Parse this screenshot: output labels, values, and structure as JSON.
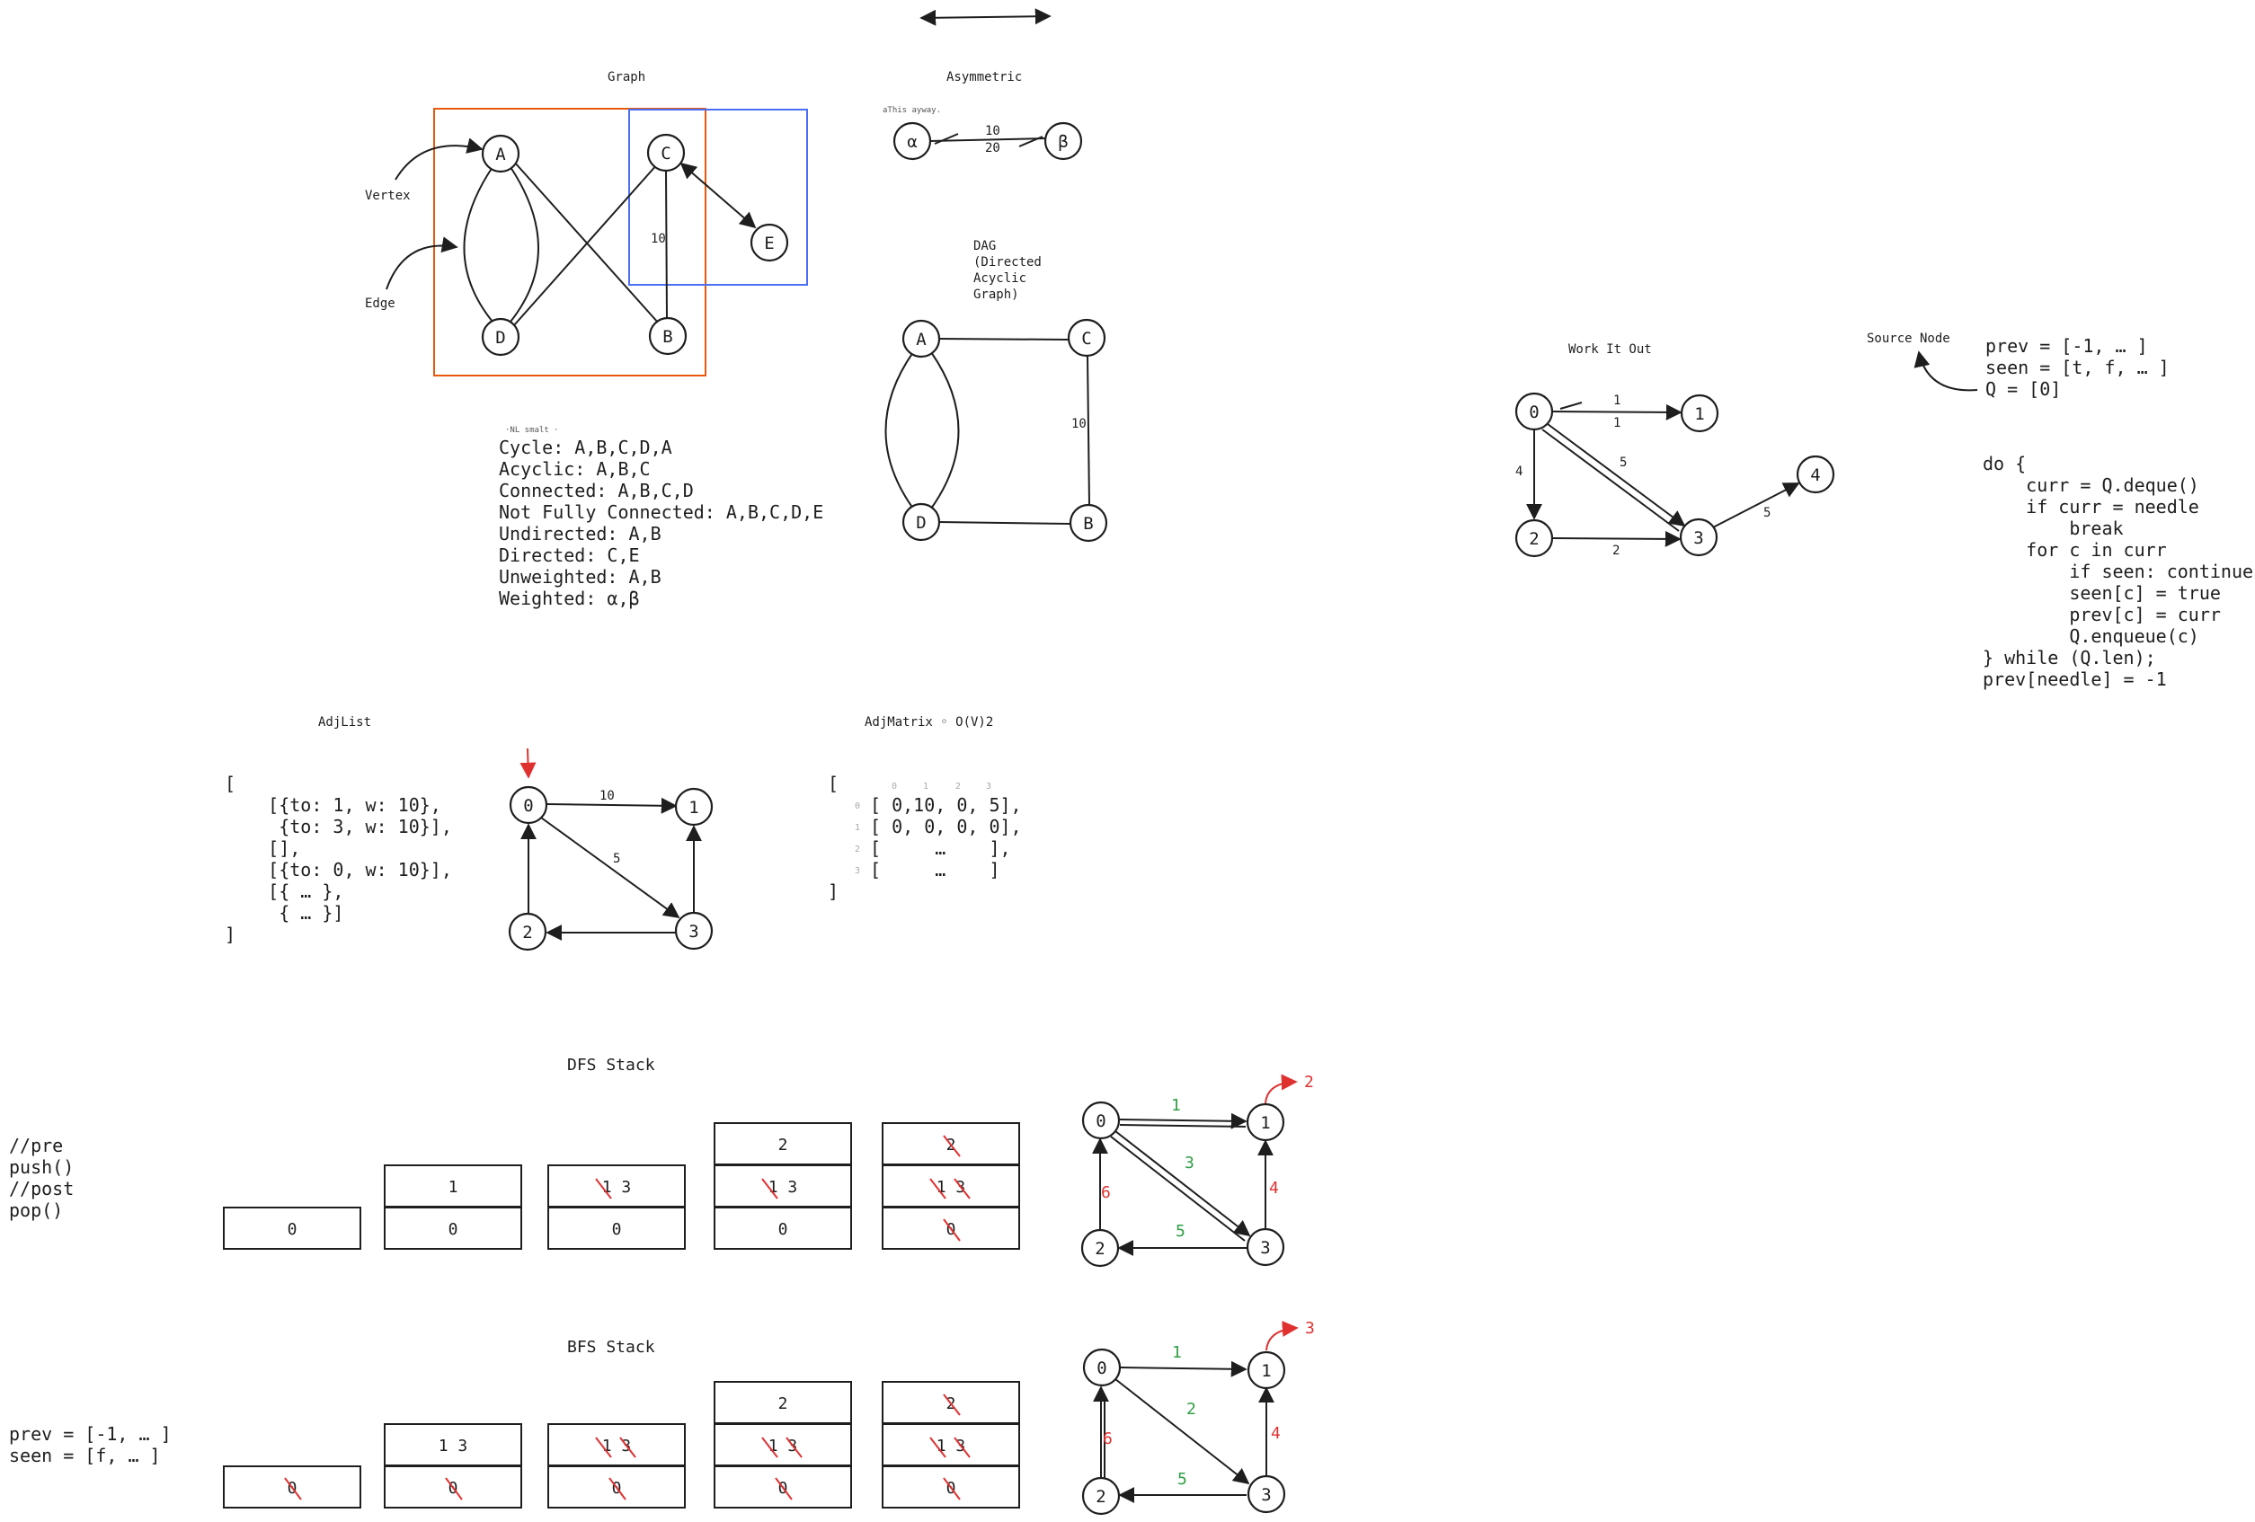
{
  "top": {
    "arrow": "double-headed-arrow"
  },
  "graph": {
    "title": "Graph",
    "vertex_label": "Vertex",
    "edge_label": "Edge",
    "nodes": [
      "A",
      "C",
      "E",
      "D",
      "B"
    ],
    "edge_weight": "10",
    "colors": {
      "orange_box": "#e8590c",
      "blue_box": "#4c6ef5"
    }
  },
  "asymmetric": {
    "title": "Asymmetric",
    "tiny_note": "aThis ayway.",
    "nodes": [
      "α",
      "β"
    ],
    "weights": [
      "10",
      "20"
    ]
  },
  "dag": {
    "title_lines": [
      "DAG",
      "(Directed",
      "Acyclic",
      "Graph)"
    ],
    "nodes": [
      "A",
      "C",
      "D",
      "B"
    ],
    "edge_weight": "10"
  },
  "definitions": {
    "tiny_note": "·NL smalt ·",
    "lines": [
      "Cycle: A,B,C,D,A",
      "Acyclic: A,B,C",
      "Connected: A,B,C,D",
      "Not Fully Connected: A,B,C,D,E",
      "Undirected: A,B",
      "Directed: C,E",
      "Unweighted: A,B",
      "Weighted: α,β"
    ]
  },
  "work_it_out": {
    "title": "Work It Out",
    "nodes": [
      "0",
      "1",
      "2",
      "3",
      "4"
    ],
    "weights": [
      "1",
      "1",
      "5",
      "4",
      "2",
      "5"
    ]
  },
  "source_node": {
    "label": "Source Node",
    "state_lines": [
      "prev = [-1, … ]",
      "seen = [t, f, … ]",
      "Q = [0]"
    ],
    "code_lines": [
      "do {",
      "    curr = Q.deque()",
      "    if curr = needle",
      "        break",
      "    for c in curr",
      "        if seen: continue",
      "        seen[c] = true",
      "        prev[c] = curr",
      "        Q.enqueue(c)",
      "} while (Q.len);",
      "prev[needle] = -1"
    ]
  },
  "adjlist": {
    "title": "AdjList",
    "lines": [
      "[",
      "    [{to: 1, w: 10},",
      "     {to: 3, w: 10}],",
      "    [],",
      "    [{to: 0, w: 10}],",
      "    [{ … },",
      "     { … }]",
      "]"
    ],
    "nodes": [
      "0",
      "1",
      "2",
      "3"
    ],
    "weights": [
      "10",
      "5"
    ]
  },
  "adjmatrix": {
    "title": "AdjMatrix ◦ O(V)2",
    "col_index": [
      "0",
      "1",
      "2",
      "3"
    ],
    "row_index": [
      "0",
      "1",
      "2",
      "3"
    ],
    "lines": [
      "[",
      "[ 0,10, 0, 5],",
      "[ 0, 0, 0, 0],",
      "[     …    ],",
      "[     …    ]",
      "]"
    ]
  },
  "dfs": {
    "title": "DFS Stack",
    "comment_lines": [
      "//pre",
      "push()",
      "//post",
      "pop()"
    ],
    "stacks": [
      [
        "0"
      ],
      [
        "0",
        "1"
      ],
      [
        "0",
        "1 3"
      ],
      [
        "0",
        "1 3",
        "2"
      ],
      [
        "0",
        "1 3",
        "2"
      ]
    ],
    "nodes": [
      "0",
      "1",
      "2",
      "3"
    ],
    "green_weights": [
      "1",
      "3",
      "5"
    ],
    "red_weights": [
      "6",
      "4"
    ],
    "target": "2"
  },
  "bfs": {
    "title": "BFS Stack",
    "state_lines": [
      "prev = [-1, … ]",
      "seen = [f, … ]"
    ],
    "stacks": [
      [
        "0"
      ],
      [
        "0",
        "1 3"
      ],
      [
        "0",
        "1 3"
      ],
      [
        "0",
        "1 3",
        "2"
      ],
      [
        "0",
        "1 3",
        "2"
      ]
    ],
    "nodes": [
      "0",
      "1",
      "2",
      "3"
    ],
    "green_weights": [
      "1",
      "2",
      "5"
    ],
    "red_weights": [
      "6",
      "4"
    ],
    "target": "3"
  }
}
